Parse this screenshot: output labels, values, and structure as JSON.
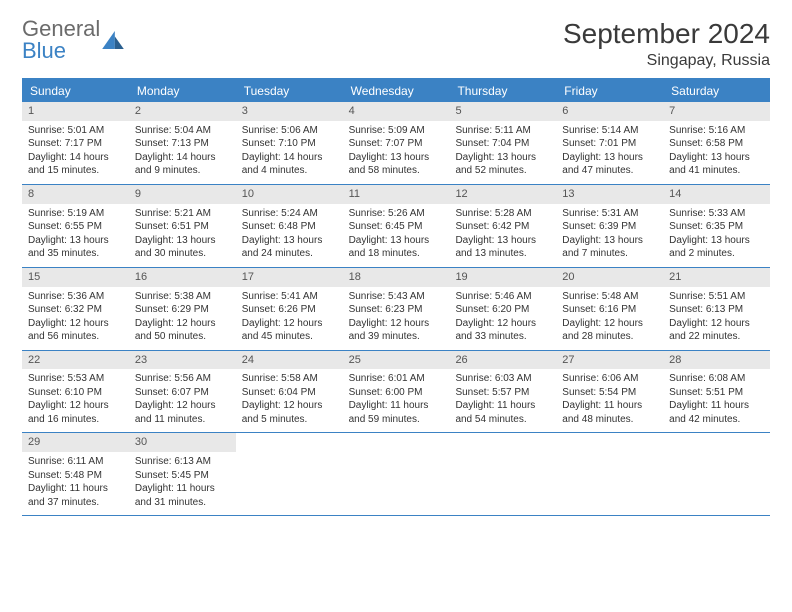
{
  "logo": {
    "text1": "General",
    "text2": "Blue"
  },
  "title": "September 2024",
  "location": "Singapay, Russia",
  "weekdays": [
    "Sunday",
    "Monday",
    "Tuesday",
    "Wednesday",
    "Thursday",
    "Friday",
    "Saturday"
  ],
  "colors": {
    "accent": "#3b82c4",
    "day_bg": "#e8e8e8",
    "text": "#333333"
  },
  "weeks": [
    [
      {
        "num": "1",
        "sunrise": "Sunrise: 5:01 AM",
        "sunset": "Sunset: 7:17 PM",
        "daylight1": "Daylight: 14 hours",
        "daylight2": "and 15 minutes."
      },
      {
        "num": "2",
        "sunrise": "Sunrise: 5:04 AM",
        "sunset": "Sunset: 7:13 PM",
        "daylight1": "Daylight: 14 hours",
        "daylight2": "and 9 minutes."
      },
      {
        "num": "3",
        "sunrise": "Sunrise: 5:06 AM",
        "sunset": "Sunset: 7:10 PM",
        "daylight1": "Daylight: 14 hours",
        "daylight2": "and 4 minutes."
      },
      {
        "num": "4",
        "sunrise": "Sunrise: 5:09 AM",
        "sunset": "Sunset: 7:07 PM",
        "daylight1": "Daylight: 13 hours",
        "daylight2": "and 58 minutes."
      },
      {
        "num": "5",
        "sunrise": "Sunrise: 5:11 AM",
        "sunset": "Sunset: 7:04 PM",
        "daylight1": "Daylight: 13 hours",
        "daylight2": "and 52 minutes."
      },
      {
        "num": "6",
        "sunrise": "Sunrise: 5:14 AM",
        "sunset": "Sunset: 7:01 PM",
        "daylight1": "Daylight: 13 hours",
        "daylight2": "and 47 minutes."
      },
      {
        "num": "7",
        "sunrise": "Sunrise: 5:16 AM",
        "sunset": "Sunset: 6:58 PM",
        "daylight1": "Daylight: 13 hours",
        "daylight2": "and 41 minutes."
      }
    ],
    [
      {
        "num": "8",
        "sunrise": "Sunrise: 5:19 AM",
        "sunset": "Sunset: 6:55 PM",
        "daylight1": "Daylight: 13 hours",
        "daylight2": "and 35 minutes."
      },
      {
        "num": "9",
        "sunrise": "Sunrise: 5:21 AM",
        "sunset": "Sunset: 6:51 PM",
        "daylight1": "Daylight: 13 hours",
        "daylight2": "and 30 minutes."
      },
      {
        "num": "10",
        "sunrise": "Sunrise: 5:24 AM",
        "sunset": "Sunset: 6:48 PM",
        "daylight1": "Daylight: 13 hours",
        "daylight2": "and 24 minutes."
      },
      {
        "num": "11",
        "sunrise": "Sunrise: 5:26 AM",
        "sunset": "Sunset: 6:45 PM",
        "daylight1": "Daylight: 13 hours",
        "daylight2": "and 18 minutes."
      },
      {
        "num": "12",
        "sunrise": "Sunrise: 5:28 AM",
        "sunset": "Sunset: 6:42 PM",
        "daylight1": "Daylight: 13 hours",
        "daylight2": "and 13 minutes."
      },
      {
        "num": "13",
        "sunrise": "Sunrise: 5:31 AM",
        "sunset": "Sunset: 6:39 PM",
        "daylight1": "Daylight: 13 hours",
        "daylight2": "and 7 minutes."
      },
      {
        "num": "14",
        "sunrise": "Sunrise: 5:33 AM",
        "sunset": "Sunset: 6:35 PM",
        "daylight1": "Daylight: 13 hours",
        "daylight2": "and 2 minutes."
      }
    ],
    [
      {
        "num": "15",
        "sunrise": "Sunrise: 5:36 AM",
        "sunset": "Sunset: 6:32 PM",
        "daylight1": "Daylight: 12 hours",
        "daylight2": "and 56 minutes."
      },
      {
        "num": "16",
        "sunrise": "Sunrise: 5:38 AM",
        "sunset": "Sunset: 6:29 PM",
        "daylight1": "Daylight: 12 hours",
        "daylight2": "and 50 minutes."
      },
      {
        "num": "17",
        "sunrise": "Sunrise: 5:41 AM",
        "sunset": "Sunset: 6:26 PM",
        "daylight1": "Daylight: 12 hours",
        "daylight2": "and 45 minutes."
      },
      {
        "num": "18",
        "sunrise": "Sunrise: 5:43 AM",
        "sunset": "Sunset: 6:23 PM",
        "daylight1": "Daylight: 12 hours",
        "daylight2": "and 39 minutes."
      },
      {
        "num": "19",
        "sunrise": "Sunrise: 5:46 AM",
        "sunset": "Sunset: 6:20 PM",
        "daylight1": "Daylight: 12 hours",
        "daylight2": "and 33 minutes."
      },
      {
        "num": "20",
        "sunrise": "Sunrise: 5:48 AM",
        "sunset": "Sunset: 6:16 PM",
        "daylight1": "Daylight: 12 hours",
        "daylight2": "and 28 minutes."
      },
      {
        "num": "21",
        "sunrise": "Sunrise: 5:51 AM",
        "sunset": "Sunset: 6:13 PM",
        "daylight1": "Daylight: 12 hours",
        "daylight2": "and 22 minutes."
      }
    ],
    [
      {
        "num": "22",
        "sunrise": "Sunrise: 5:53 AM",
        "sunset": "Sunset: 6:10 PM",
        "daylight1": "Daylight: 12 hours",
        "daylight2": "and 16 minutes."
      },
      {
        "num": "23",
        "sunrise": "Sunrise: 5:56 AM",
        "sunset": "Sunset: 6:07 PM",
        "daylight1": "Daylight: 12 hours",
        "daylight2": "and 11 minutes."
      },
      {
        "num": "24",
        "sunrise": "Sunrise: 5:58 AM",
        "sunset": "Sunset: 6:04 PM",
        "daylight1": "Daylight: 12 hours",
        "daylight2": "and 5 minutes."
      },
      {
        "num": "25",
        "sunrise": "Sunrise: 6:01 AM",
        "sunset": "Sunset: 6:00 PM",
        "daylight1": "Daylight: 11 hours",
        "daylight2": "and 59 minutes."
      },
      {
        "num": "26",
        "sunrise": "Sunrise: 6:03 AM",
        "sunset": "Sunset: 5:57 PM",
        "daylight1": "Daylight: 11 hours",
        "daylight2": "and 54 minutes."
      },
      {
        "num": "27",
        "sunrise": "Sunrise: 6:06 AM",
        "sunset": "Sunset: 5:54 PM",
        "daylight1": "Daylight: 11 hours",
        "daylight2": "and 48 minutes."
      },
      {
        "num": "28",
        "sunrise": "Sunrise: 6:08 AM",
        "sunset": "Sunset: 5:51 PM",
        "daylight1": "Daylight: 11 hours",
        "daylight2": "and 42 minutes."
      }
    ],
    [
      {
        "num": "29",
        "sunrise": "Sunrise: 6:11 AM",
        "sunset": "Sunset: 5:48 PM",
        "daylight1": "Daylight: 11 hours",
        "daylight2": "and 37 minutes."
      },
      {
        "num": "30",
        "sunrise": "Sunrise: 6:13 AM",
        "sunset": "Sunset: 5:45 PM",
        "daylight1": "Daylight: 11 hours",
        "daylight2": "and 31 minutes."
      },
      null,
      null,
      null,
      null,
      null
    ]
  ]
}
